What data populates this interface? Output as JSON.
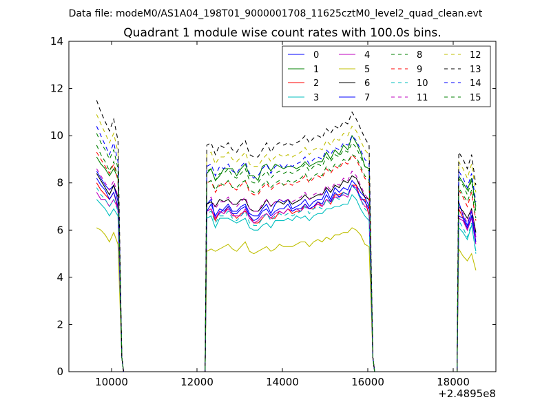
{
  "chart_data": {
    "type": "line",
    "suptitle": "Data file: modeM0/AS1A04_198T01_9000001708_11625cztM0_level2_quad_clean.evt",
    "title": "Quadrant 1 module wise count rates with 100.0s bins.",
    "xlabel": "",
    "ylabel": "",
    "x_offset_label": "+2.4895e8",
    "xlim": [
      9000,
      19000
    ],
    "ylim": [
      0,
      14
    ],
    "xticks": [
      10000,
      12000,
      14000,
      16000,
      18000
    ],
    "xtick_labels": [
      "10000",
      "12000",
      "14000",
      "16000",
      "18000"
    ],
    "yticks": [
      0,
      2,
      4,
      6,
      8,
      10,
      12,
      14
    ],
    "ytick_labels": [
      "0",
      "2",
      "4",
      "6",
      "8",
      "10",
      "12",
      "14"
    ],
    "grid": false,
    "legend": {
      "position": "top-right",
      "columns": 4
    },
    "bin_seconds": 100,
    "segments": [
      {
        "x_start": 9650,
        "count": 6
      },
      {
        "x_start": 12230,
        "count": 39
      },
      {
        "x_start": 18130,
        "count": 5
      }
    ],
    "series": [
      {
        "name": "0",
        "color": "#0000ff",
        "dash": "solid",
        "values": [
          8.5,
          8.2,
          7.9,
          7.7,
          7.9,
          7.2,
          7.1,
          7.3,
          6.5,
          6.7,
          6.9,
          7.1,
          6.8,
          6.8,
          7.0,
          7.1,
          6.7,
          6.6,
          6.6,
          6.9,
          7.1,
          6.7,
          7.1,
          7.3,
          7.2,
          7.3,
          6.9,
          7.0,
          7.1,
          7.3,
          7.0,
          7.2,
          7.3,
          7.3,
          7.7,
          7.3,
          7.8,
          7.6,
          7.8,
          7.7,
          8.1,
          7.9,
          7.6,
          7.4,
          7.0,
          7.2,
          6.6,
          6.2,
          6.8,
          5.7
        ]
      },
      {
        "name": "1",
        "color": "#008000",
        "dash": "solid",
        "values": [
          9.1,
          8.8,
          8.6,
          8.3,
          8.6,
          8.2,
          8.4,
          8.6,
          8.1,
          8.3,
          8.6,
          8.6,
          8.6,
          8.3,
          8.6,
          8.8,
          8.3,
          8.3,
          8.1,
          8.7,
          8.8,
          8.5,
          8.8,
          8.7,
          8.6,
          8.7,
          8.7,
          8.6,
          8.7,
          8.9,
          8.7,
          8.8,
          8.9,
          8.9,
          9.3,
          9.0,
          9.4,
          9.2,
          9.6,
          9.4,
          10.0,
          9.7,
          9.3,
          8.7,
          8.6,
          8.3,
          8.0,
          7.7,
          8.2,
          7.0
        ]
      },
      {
        "name": "2",
        "color": "#ff0000",
        "dash": "solid",
        "values": [
          8.0,
          7.7,
          7.5,
          7.3,
          7.6,
          6.9,
          6.8,
          6.9,
          6.4,
          6.8,
          6.7,
          7.0,
          6.7,
          6.5,
          6.7,
          6.8,
          6.6,
          6.3,
          6.3,
          6.5,
          6.7,
          6.5,
          6.5,
          6.8,
          6.7,
          6.9,
          6.7,
          6.8,
          6.8,
          7.1,
          6.9,
          6.9,
          7.2,
          7.0,
          7.3,
          7.1,
          7.5,
          7.5,
          7.6,
          7.5,
          7.9,
          7.9,
          7.3,
          7.3,
          6.6,
          6.9,
          6.5,
          6.0,
          6.6,
          5.5
        ]
      },
      {
        "name": "3",
        "color": "#00bfbf",
        "dash": "solid",
        "values": [
          7.3,
          7.1,
          6.9,
          6.6,
          6.9,
          6.6,
          6.5,
          6.6,
          6.1,
          6.5,
          6.5,
          6.5,
          6.4,
          6.3,
          6.4,
          6.5,
          6.1,
          6.0,
          6.0,
          6.2,
          6.3,
          6.1,
          6.4,
          6.4,
          6.4,
          6.5,
          6.4,
          6.6,
          6.5,
          6.6,
          6.4,
          6.6,
          6.7,
          6.7,
          6.9,
          6.9,
          7.0,
          7.0,
          7.1,
          7.1,
          7.5,
          7.3,
          6.9,
          6.6,
          6.4,
          6.1,
          5.9,
          5.6,
          6.2,
          5.1
        ]
      },
      {
        "name": "4",
        "color": "#bf00bf",
        "dash": "solid",
        "values": [
          7.6,
          7.3,
          7.3,
          7.0,
          7.3,
          6.9,
          6.8,
          6.9,
          6.5,
          6.8,
          6.7,
          6.9,
          6.6,
          6.6,
          6.6,
          6.9,
          6.5,
          6.3,
          6.4,
          6.6,
          6.7,
          6.5,
          6.7,
          6.8,
          6.7,
          6.9,
          6.8,
          6.9,
          6.8,
          7.0,
          6.9,
          7.0,
          7.1,
          7.0,
          7.3,
          7.2,
          7.4,
          7.4,
          7.5,
          7.4,
          7.9,
          7.8,
          7.3,
          7.0,
          6.9,
          6.5,
          6.4,
          6.0,
          6.5,
          5.4
        ]
      },
      {
        "name": "5",
        "color": "#bfbf00",
        "dash": "solid",
        "values": [
          6.1,
          6.0,
          5.8,
          5.5,
          5.9,
          5.4,
          5.1,
          5.2,
          5.1,
          5.2,
          5.3,
          5.4,
          5.2,
          5.1,
          5.3,
          5.5,
          5.1,
          5.0,
          5.1,
          5.2,
          5.3,
          5.1,
          5.2,
          5.4,
          5.3,
          5.3,
          5.3,
          5.4,
          5.5,
          5.5,
          5.3,
          5.5,
          5.6,
          5.5,
          5.7,
          5.6,
          5.8,
          5.8,
          5.9,
          5.9,
          6.1,
          6.0,
          5.8,
          5.4,
          5.3,
          5.2,
          4.9,
          4.7,
          5.0,
          4.3
        ]
      },
      {
        "name": "6",
        "color": "#000000",
        "dash": "solid",
        "values": [
          8.4,
          8.1,
          7.8,
          7.5,
          7.9,
          7.4,
          7.1,
          7.2,
          7.0,
          7.3,
          7.2,
          7.3,
          7.1,
          7.1,
          7.3,
          7.3,
          6.9,
          6.8,
          6.8,
          7.0,
          7.3,
          7.0,
          7.2,
          7.2,
          7.1,
          7.3,
          7.1,
          7.2,
          7.3,
          7.5,
          7.3,
          7.4,
          7.5,
          7.5,
          7.8,
          7.6,
          7.9,
          7.8,
          8.1,
          8.0,
          8.3,
          8.2,
          7.8,
          7.4,
          7.3,
          7.0,
          6.8,
          6.5,
          6.9,
          5.9
        ]
      },
      {
        "name": "7",
        "color": "#0000ff",
        "dash": "solid",
        "values": [
          8.2,
          7.9,
          7.7,
          7.3,
          7.6,
          7.0,
          6.8,
          7.1,
          6.6,
          6.9,
          6.8,
          7.0,
          6.7,
          6.7,
          6.9,
          7.0,
          6.6,
          6.4,
          6.5,
          6.8,
          6.9,
          6.6,
          6.8,
          6.9,
          6.9,
          7.1,
          6.8,
          6.9,
          6.9,
          7.1,
          6.9,
          7.0,
          7.2,
          7.1,
          7.5,
          7.2,
          7.6,
          7.4,
          7.6,
          7.5,
          7.9,
          7.7,
          7.4,
          7.2,
          6.9,
          6.6,
          6.5,
          6.1,
          6.6,
          5.5
        ]
      },
      {
        "name": "8",
        "color": "#008000",
        "dash": "dashed",
        "values": [
          10.1,
          9.7,
          9.4,
          9.0,
          9.4,
          8.6,
          8.5,
          8.6,
          8.1,
          8.4,
          8.4,
          8.6,
          8.3,
          8.2,
          8.4,
          8.6,
          8.1,
          8.0,
          8.0,
          8.3,
          8.5,
          8.2,
          8.4,
          8.5,
          8.4,
          8.5,
          8.4,
          8.5,
          8.6,
          8.8,
          8.5,
          8.7,
          8.8,
          8.7,
          9.1,
          8.9,
          9.2,
          9.1,
          9.4,
          9.3,
          9.7,
          9.5,
          9.1,
          8.7,
          8.5,
          8.2,
          7.9,
          7.5,
          8.1,
          6.8
        ]
      },
      {
        "name": "9",
        "color": "#ff0000",
        "dash": "dashed",
        "values": [
          9.3,
          9.0,
          8.7,
          8.4,
          8.8,
          8.1,
          8.0,
          8.1,
          7.6,
          7.9,
          7.9,
          8.1,
          7.8,
          7.7,
          7.9,
          8.1,
          7.6,
          7.5,
          7.5,
          7.8,
          8.0,
          7.7,
          7.9,
          8.0,
          7.9,
          8.0,
          7.9,
          8.0,
          8.1,
          8.3,
          8.0,
          8.2,
          8.3,
          8.2,
          8.6,
          8.4,
          8.7,
          8.6,
          8.9,
          8.8,
          9.2,
          9.0,
          8.6,
          8.2,
          8.0,
          7.7,
          7.4,
          7.0,
          7.6,
          6.4
        ]
      },
      {
        "name": "10",
        "color": "#00bfbf",
        "dash": "dashed",
        "values": [
          7.8,
          7.5,
          7.3,
          7.0,
          7.3,
          6.8,
          6.7,
          6.8,
          6.3,
          6.6,
          6.6,
          6.8,
          6.5,
          6.4,
          6.6,
          6.8,
          6.3,
          6.2,
          6.2,
          6.5,
          6.7,
          6.4,
          6.6,
          6.7,
          6.6,
          6.7,
          6.6,
          6.7,
          6.8,
          7.0,
          6.7,
          6.9,
          7.0,
          6.9,
          7.3,
          7.1,
          7.4,
          7.3,
          7.6,
          7.5,
          7.9,
          7.7,
          7.3,
          6.9,
          6.7,
          6.4,
          6.1,
          5.7,
          6.3,
          5.0
        ]
      },
      {
        "name": "11",
        "color": "#bf00bf",
        "dash": "dashed",
        "values": [
          8.6,
          8.3,
          8.0,
          7.7,
          8.1,
          7.4,
          7.3,
          7.4,
          6.9,
          7.2,
          7.2,
          7.4,
          7.1,
          7.0,
          7.2,
          7.4,
          6.9,
          6.8,
          6.8,
          7.1,
          7.3,
          7.0,
          7.2,
          7.3,
          7.2,
          7.3,
          7.2,
          7.3,
          7.4,
          7.6,
          7.3,
          7.5,
          7.6,
          7.5,
          7.9,
          7.7,
          8.0,
          7.9,
          8.2,
          8.1,
          8.5,
          8.3,
          7.9,
          7.5,
          7.3,
          7.0,
          6.7,
          6.3,
          6.9,
          5.7
        ]
      },
      {
        "name": "12",
        "color": "#bfbf00",
        "dash": "dashed",
        "values": [
          10.9,
          10.5,
          10.1,
          9.7,
          10.1,
          9.3,
          9.2,
          9.3,
          8.8,
          9.1,
          9.1,
          9.3,
          9.0,
          8.9,
          9.1,
          9.3,
          8.8,
          8.7,
          8.7,
          9.0,
          9.2,
          8.9,
          9.1,
          9.2,
          9.1,
          9.2,
          9.1,
          9.2,
          9.3,
          9.5,
          9.2,
          9.4,
          9.5,
          9.4,
          9.8,
          9.6,
          9.9,
          9.8,
          10.1,
          10.0,
          10.4,
          10.2,
          9.8,
          9.4,
          9.2,
          8.9,
          8.6,
          8.2,
          8.8,
          7.6
        ]
      },
      {
        "name": "13",
        "color": "#000000",
        "dash": "dashed",
        "values": [
          11.5,
          11.0,
          10.6,
          10.2,
          10.7,
          9.8,
          9.6,
          9.7,
          9.2,
          9.6,
          9.5,
          9.7,
          9.4,
          9.3,
          9.6,
          9.8,
          9.2,
          9.1,
          9.1,
          9.4,
          9.7,
          9.3,
          9.6,
          9.7,
          9.6,
          9.7,
          9.6,
          9.7,
          9.8,
          10.0,
          9.7,
          9.9,
          10.0,
          9.9,
          10.3,
          10.1,
          10.4,
          10.3,
          10.6,
          10.5,
          11.0,
          10.7,
          10.3,
          9.9,
          9.6,
          9.3,
          9.0,
          8.6,
          9.2,
          7.9
        ]
      },
      {
        "name": "14",
        "color": "#0000ff",
        "dash": "dashed",
        "values": [
          10.4,
          10.0,
          9.6,
          9.2,
          9.7,
          8.9,
          8.7,
          8.8,
          8.3,
          8.7,
          8.6,
          8.8,
          8.5,
          8.4,
          8.7,
          8.9,
          8.4,
          8.2,
          8.3,
          8.6,
          8.8,
          8.4,
          8.7,
          8.8,
          8.6,
          8.8,
          8.7,
          8.8,
          8.9,
          9.1,
          8.8,
          9.0,
          9.1,
          9.0,
          9.4,
          9.2,
          9.5,
          9.4,
          9.7,
          9.6,
          10.0,
          9.8,
          9.4,
          9.0,
          8.8,
          8.5,
          8.2,
          7.8,
          8.4,
          7.2
        ]
      },
      {
        "name": "15",
        "color": "#008000",
        "dash": "dashed",
        "values": [
          9.6,
          9.2,
          8.9,
          8.5,
          8.9,
          8.2,
          8.0,
          8.1,
          7.7,
          8.0,
          7.9,
          8.1,
          7.8,
          7.8,
          8.0,
          8.1,
          7.7,
          7.6,
          7.6,
          7.9,
          8.1,
          7.8,
          8.0,
          8.1,
          7.9,
          8.1,
          8.0,
          8.1,
          8.2,
          8.4,
          8.1,
          8.3,
          8.4,
          8.3,
          8.7,
          8.5,
          8.8,
          8.7,
          9.0,
          8.9,
          9.2,
          9.1,
          8.7,
          8.3,
          8.1,
          7.8,
          7.5,
          7.2,
          7.7,
          6.5
        ]
      }
    ]
  }
}
